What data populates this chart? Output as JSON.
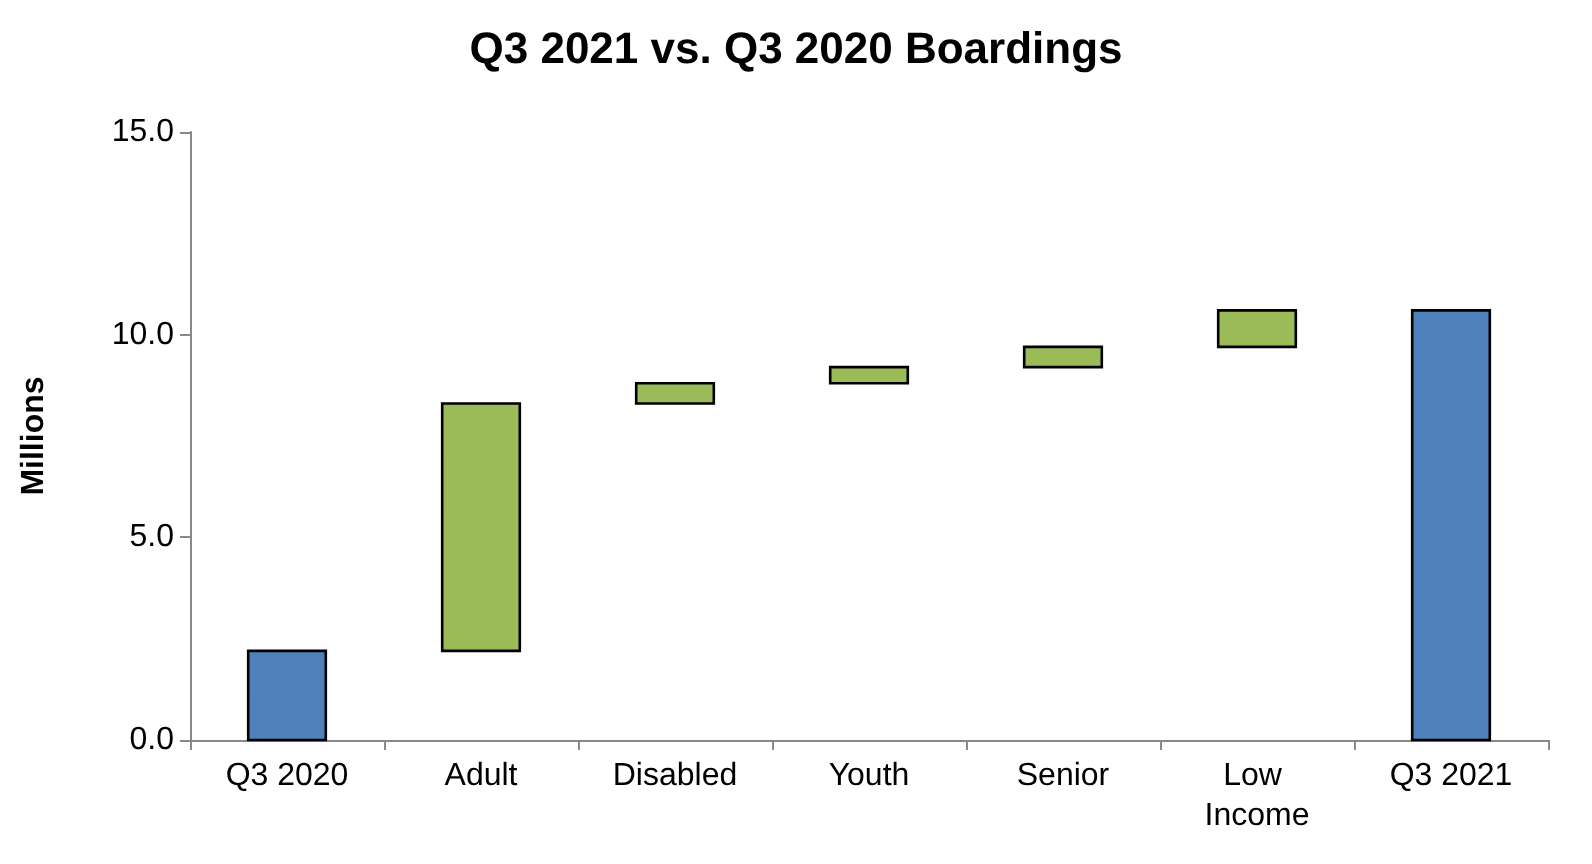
{
  "chart_data": {
    "type": "bar",
    "title": "Q3 2021 vs. Q3 2020 Boardings",
    "ylabel": "Millions",
    "categories": [
      "Q3 2020",
      "Adult",
      "Disabled",
      "Youth",
      "Senior",
      "Low Income",
      "Q3 2021"
    ],
    "values": [
      2.2,
      6.1,
      0.5,
      0.4,
      0.5,
      0.9,
      10.6
    ],
    "base": [
      0,
      2.2,
      8.3,
      8.8,
      9.2,
      9.7,
      0
    ],
    "colors": [
      "#4f81bd",
      "#9bbb59",
      "#9bbb59",
      "#9bbb59",
      "#9bbb59",
      "#9bbb59",
      "#4f81bd"
    ],
    "ylim": [
      0,
      15
    ],
    "yticks": [
      {
        "value": 0,
        "label": "0.0"
      },
      {
        "value": 5,
        "label": "5.0"
      },
      {
        "value": 10,
        "label": "10.0"
      },
      {
        "value": 15,
        "label": "15.0"
      }
    ],
    "grid": false
  }
}
